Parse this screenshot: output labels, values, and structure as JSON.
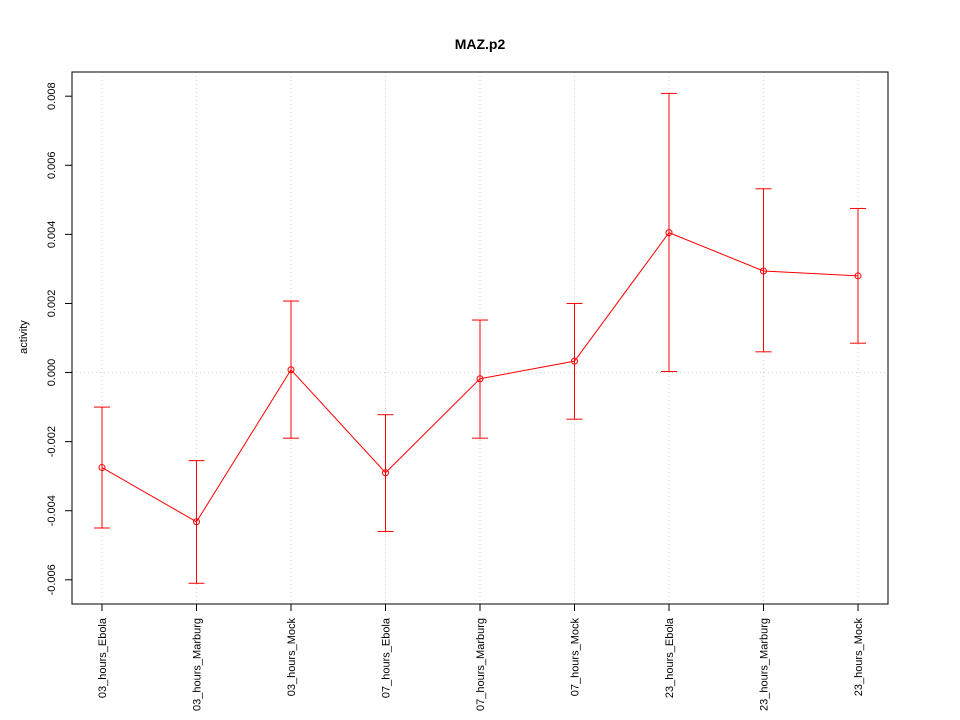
{
  "chart_data": {
    "type": "line",
    "title": "MAZ.p2",
    "xlabel": "",
    "ylabel": "activity",
    "categories": [
      "03_hours_Ebola",
      "03_hours_Marburg",
      "03_hours_Mock",
      "07_hours_Ebola",
      "07_hours_Marburg",
      "07_hours_Mock",
      "23_hours_Ebola",
      "23_hours_Marburg",
      "23_hours_Mock"
    ],
    "series": [
      {
        "values": [
          -0.00275,
          -0.00432,
          8e-05,
          -0.0029,
          -0.00018,
          0.00033,
          0.00405,
          0.00294,
          0.0028
        ],
        "error_low": [
          -0.0045,
          -0.0061,
          -0.0019,
          -0.0046,
          -0.0019,
          -0.00135,
          3e-05,
          0.0006,
          0.00085
        ],
        "error_high": [
          -0.001,
          -0.00255,
          0.00207,
          -0.00122,
          0.00152,
          0.002,
          0.00808,
          0.00532,
          0.00475
        ],
        "color": "#ff0000"
      }
    ],
    "ylim": [
      -0.0067,
      0.0087
    ],
    "yticks": [
      -0.006,
      -0.004,
      -0.002,
      0.0,
      0.002,
      0.004,
      0.006,
      0.008
    ],
    "ytick_labels": [
      "-0.006",
      "-0.004",
      "-0.002",
      "0.000",
      "0.002",
      "0.004",
      "0.006",
      "0.008"
    ],
    "grid": true,
    "grid_color": "#d3d3d3",
    "legend": "none"
  }
}
